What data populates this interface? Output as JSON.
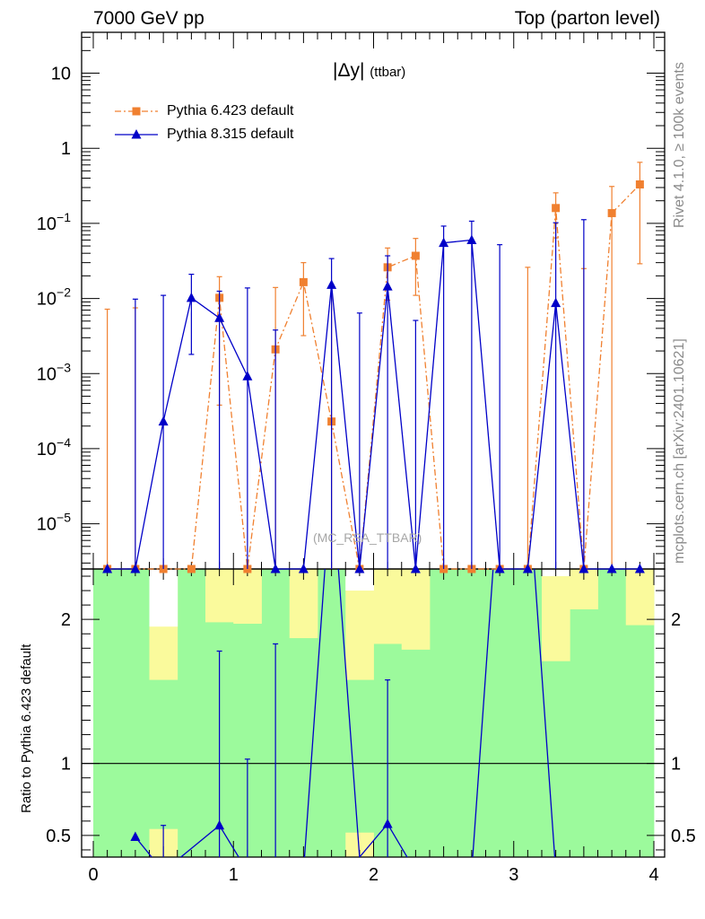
{
  "header": {
    "left": "7000 GeV pp",
    "right": "Top (parton level)"
  },
  "side_text": {
    "rivet": "Rivet 4.1.0, ≥ 100k events",
    "mcplots": "mcplots.cern.ch [arXiv:2401.10621]"
  },
  "watermark": "(MC_RSA_TTBAR)",
  "colors": {
    "pythia6": "#f08030",
    "pythia8": "#0000c8",
    "band_green": "#9cfa9c",
    "band_yellow": "#fafa9c"
  },
  "chart_data": [
    {
      "type": "line",
      "title": "|Δy| (ttbar)",
      "title_main": "|Δy|",
      "title_sub": "(ttbar)",
      "yscale": "log",
      "xlim": [
        0,
        4
      ],
      "ylim": [
        2.5e-06,
        35
      ],
      "ytick_labels": [
        "10^-5",
        "10^-4",
        "10^-3",
        "10^-2",
        "10^-1",
        "1",
        "10"
      ],
      "legend_position": "top-left",
      "series": [
        {
          "name": "Pythia 6.423 default",
          "style": "dash-dot orange, square markers",
          "x": [
            0.1,
            0.3,
            0.5,
            0.7,
            0.9,
            1.1,
            1.3,
            1.5,
            1.7,
            1.9,
            2.1,
            2.3,
            2.5,
            2.7,
            2.9,
            3.1,
            3.3,
            3.5,
            3.7,
            3.9
          ],
          "y": [
            0,
            0,
            0,
            0,
            0.0102,
            0,
            0.0021,
            0.0165,
            0.00023,
            0,
            0.026,
            0.037,
            0,
            0,
            0,
            0,
            0.16,
            0,
            0.137,
            0.33
          ],
          "err_up": [
            0.0072,
            0.0075,
            0,
            0,
            0.0195,
            0,
            0.014,
            0.03,
            0.014,
            0,
            0.047,
            0.063,
            0,
            0,
            0,
            0.026,
            0.255,
            0.025,
            0.31,
            0.65
          ],
          "err_down": [
            0,
            0,
            0,
            0,
            0.00038,
            0,
            0,
            0.0032,
            0,
            0,
            0.0095,
            0.011,
            0,
            0,
            0,
            0,
            0.064,
            0,
            0,
            0.029
          ]
        },
        {
          "name": "Pythia 8.315 default",
          "style": "solid blue, triangle markers",
          "x": [
            0.1,
            0.3,
            0.5,
            0.7,
            0.9,
            1.1,
            1.3,
            1.5,
            1.7,
            1.9,
            2.1,
            2.3,
            2.5,
            2.7,
            2.9,
            3.1,
            3.3,
            3.5,
            3.7,
            3.9
          ],
          "y": [
            0,
            0,
            0.00023,
            0.0102,
            0.0055,
            0.00092,
            0,
            0,
            0.0152,
            0,
            0.0145,
            0,
            0.055,
            0.06,
            0,
            0,
            0.0087,
            0,
            0,
            0
          ],
          "err_up": [
            0,
            0.0098,
            0.011,
            0.021,
            0.0125,
            0.0138,
            0.0038,
            0,
            0.034,
            0.0064,
            0.037,
            0.0051,
            0.092,
            0.107,
            0.052,
            0,
            0.102,
            0.112,
            0,
            0
          ],
          "err_down": [
            0,
            0,
            0,
            0.0018,
            0,
            0,
            0,
            0,
            0,
            0,
            0,
            0,
            0,
            0,
            0,
            0,
            0,
            0,
            0,
            0
          ]
        }
      ]
    },
    {
      "type": "line",
      "title": "Ratio to Pythia 6.423 default",
      "ylabel": "Ratio to Pythia 6.423 default",
      "xlim": [
        0,
        4
      ],
      "ylim": [
        0.35,
        2.35
      ],
      "xticks": [
        0,
        1,
        2,
        3,
        4
      ],
      "xtick_labels": [
        "0",
        "1",
        "2",
        "3",
        "4"
      ],
      "yticks": [
        0.5,
        1,
        2
      ],
      "ytick_labels": [
        "0.5",
        "1",
        "2"
      ],
      "reference_line": 1,
      "bands": {
        "x_edges": [
          0,
          0.2,
          0.4,
          0.6,
          0.8,
          1.0,
          1.2,
          1.4,
          1.6,
          1.8,
          2.0,
          2.2,
          2.4,
          2.6,
          2.8,
          3.0,
          3.2,
          3.4,
          3.6,
          3.8,
          4.0
        ],
        "green": [
          [
            0.35,
            2.35
          ],
          [
            0.35,
            2.35
          ],
          [
            0.35,
            2.35
          ],
          [
            0.35,
            2.35
          ],
          [
            0.35,
            2.35
          ],
          [
            0.35,
            2.35
          ],
          [
            0.35,
            2.35
          ],
          [
            0.35,
            2.35
          ],
          [
            0.35,
            2.35
          ],
          [
            0.35,
            2.35
          ],
          [
            0.35,
            2.35
          ],
          [
            0.35,
            2.35
          ],
          [
            0.35,
            2.35
          ],
          [
            0.35,
            2.35
          ],
          [
            0.35,
            2.35
          ],
          [
            0.35,
            2.35
          ],
          [
            0.35,
            2.35
          ],
          [
            0.35,
            2.35
          ],
          [
            0.35,
            2.35
          ],
          [
            0.35,
            2.35
          ]
        ],
        "yellow": [
          [
            0,
            0
          ],
          [
            0,
            0
          ],
          [
            1.58,
            2.35
          ],
          [
            0,
            0
          ],
          [
            1.98,
            2.35
          ],
          [
            1.97,
            2.35
          ],
          [
            0,
            0
          ],
          [
            1.87,
            2.35
          ],
          [
            0,
            0
          ],
          [
            1.58,
            2.35
          ],
          [
            1.83,
            2.35
          ],
          [
            1.79,
            2.35
          ],
          [
            0,
            0
          ],
          [
            0,
            0
          ],
          [
            0,
            0
          ],
          [
            0,
            0
          ],
          [
            1.71,
            2.3
          ],
          [
            2.07,
            2.35
          ],
          [
            0,
            0
          ],
          [
            1.96,
            2.35
          ]
        ],
        "white": [
          [
            0,
            0
          ],
          [
            0,
            0
          ],
          [
            1.95,
            2.35
          ],
          [
            0,
            0
          ],
          [
            0,
            0
          ],
          [
            0,
            0
          ],
          [
            0,
            0
          ],
          [
            0,
            0
          ],
          [
            0,
            0
          ],
          [
            2.2,
            2.35
          ],
          [
            0,
            0
          ],
          [
            0,
            0
          ],
          [
            0,
            0
          ],
          [
            0,
            0
          ],
          [
            0,
            0
          ],
          [
            0,
            0
          ],
          [
            2.3,
            2.35
          ],
          [
            0,
            0
          ],
          [
            0,
            0
          ],
          [
            0,
            0
          ]
        ],
        "yellow_low": [
          [
            0,
            0
          ],
          [
            0,
            0
          ],
          [
            0.35,
            0.545
          ],
          [
            0,
            0
          ],
          [
            0,
            0
          ],
          [
            0,
            0
          ],
          [
            0,
            0
          ],
          [
            0,
            0
          ],
          [
            0,
            0
          ],
          [
            0.35,
            0.52
          ],
          [
            0,
            0
          ],
          [
            0,
            0
          ],
          [
            0,
            0
          ],
          [
            0,
            0
          ],
          [
            0,
            0
          ],
          [
            0,
            0
          ],
          [
            0,
            0
          ],
          [
            0,
            0
          ],
          [
            0,
            0
          ],
          [
            0,
            0
          ]
        ]
      },
      "series": [
        {
          "name": "Pythia 8.315 default / Pythia 6.423 default",
          "x": [
            0.3,
            0.5,
            0.9,
            1.1,
            1.3,
            1.5,
            1.7,
            1.9,
            2.1,
            2.3,
            2.7,
            2.9,
            3.1,
            3.3
          ],
          "y": [
            0.49,
            0.25,
            0.57,
            0.25,
            0.25,
            0.25,
            3.0,
            0.35,
            0.58,
            0.25,
            0.25,
            3.0,
            3.0,
            0.25
          ],
          "err_up": [
            0,
            0.57,
            1.78,
            1.03,
            1.83,
            0,
            0,
            0,
            1.58,
            0,
            0,
            0,
            0,
            0
          ]
        }
      ]
    }
  ]
}
